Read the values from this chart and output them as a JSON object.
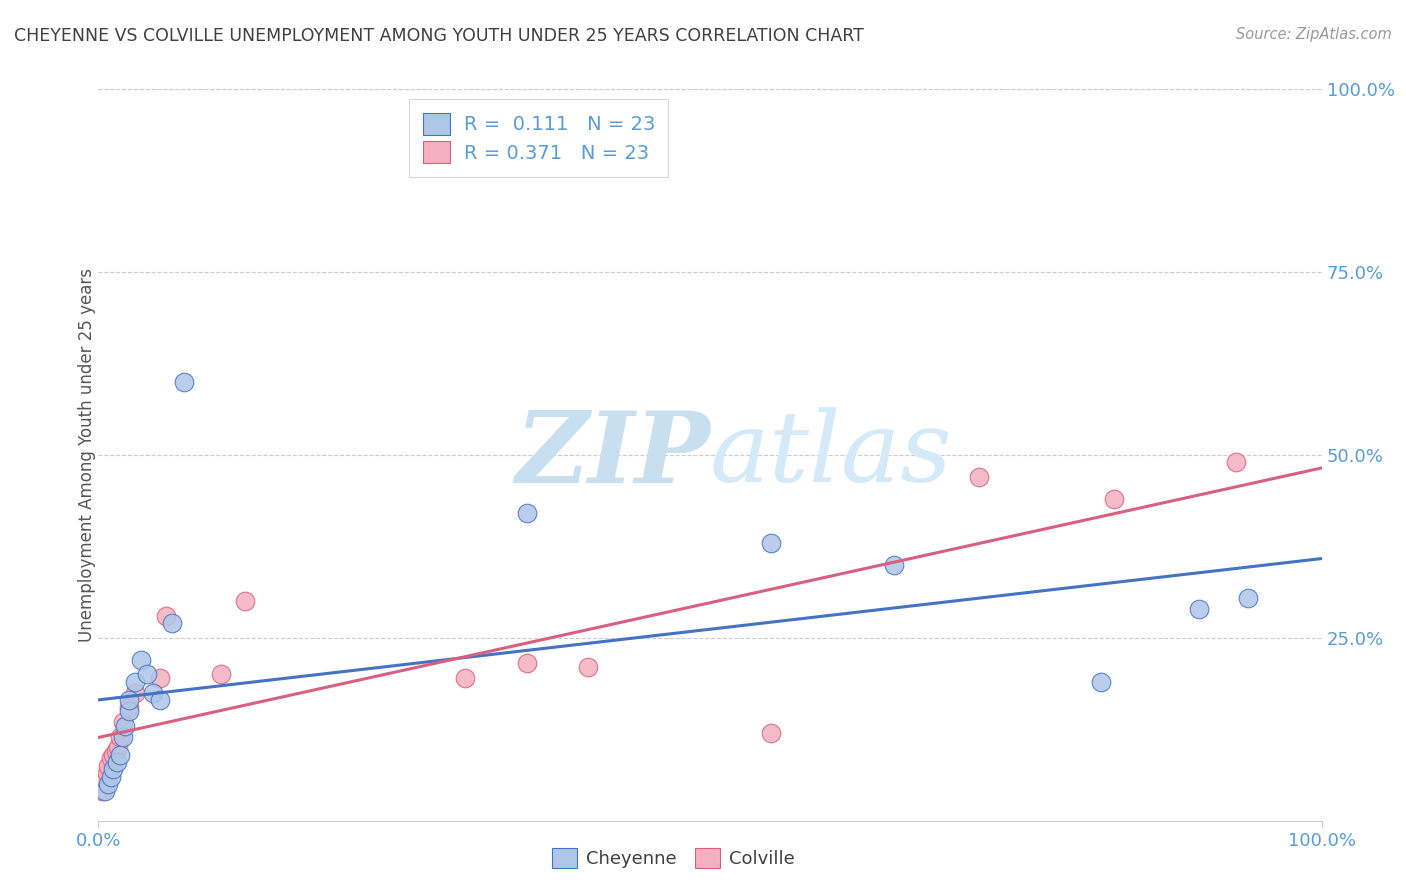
{
  "title": "CHEYENNE VS COLVILLE UNEMPLOYMENT AMONG YOUTH UNDER 25 YEARS CORRELATION CHART",
  "source": "Source: ZipAtlas.com",
  "ylabel": "Unemployment Among Youth under 25 years",
  "cheyenne_R": 0.111,
  "colville_R": 0.371,
  "N": 23,
  "cheyenne_color": "#aec6e8",
  "colville_color": "#f4afc0",
  "cheyenne_line_color": "#4472c4",
  "colville_line_color": "#d95f7f",
  "title_color": "#404040",
  "axis_color": "#5b9bd5",
  "watermark_zip_color": "#cce0f0",
  "watermark_atlas_color": "#d8eaf8",
  "grid_color": "#cccccc",
  "background_color": "#ffffff",
  "legend_label1": "Cheyenne",
  "legend_label2": "Colville",
  "cheyenne_x": [
    0.005,
    0.008,
    0.01,
    0.012,
    0.015,
    0.018,
    0.02,
    0.022,
    0.025,
    0.025,
    0.03,
    0.035,
    0.04,
    0.045,
    0.05,
    0.06,
    0.07,
    0.35,
    0.55,
    0.65,
    0.82,
    0.9,
    0.94
  ],
  "cheyenne_y": [
    0.04,
    0.05,
    0.06,
    0.07,
    0.08,
    0.09,
    0.115,
    0.13,
    0.15,
    0.165,
    0.19,
    0.22,
    0.2,
    0.175,
    0.165,
    0.27,
    0.6,
    0.42,
    0.38,
    0.35,
    0.19,
    0.29,
    0.305
  ],
  "colville_x": [
    0.003,
    0.005,
    0.007,
    0.008,
    0.01,
    0.012,
    0.014,
    0.016,
    0.018,
    0.02,
    0.025,
    0.03,
    0.05,
    0.055,
    0.1,
    0.12,
    0.3,
    0.35,
    0.4,
    0.55,
    0.72,
    0.83,
    0.93
  ],
  "colville_y": [
    0.04,
    0.055,
    0.065,
    0.075,
    0.085,
    0.09,
    0.095,
    0.1,
    0.115,
    0.135,
    0.155,
    0.175,
    0.195,
    0.28,
    0.2,
    0.3,
    0.195,
    0.215,
    0.21,
    0.12,
    0.47,
    0.44,
    0.49
  ],
  "xlim": [
    0,
    1.0
  ],
  "ylim": [
    0,
    1.0
  ],
  "yticks_right": [
    0.25,
    0.5,
    0.75,
    1.0
  ],
  "ytick_labels_right": [
    "25.0%",
    "50.0%",
    "75.0%",
    "100.0%"
  ]
}
